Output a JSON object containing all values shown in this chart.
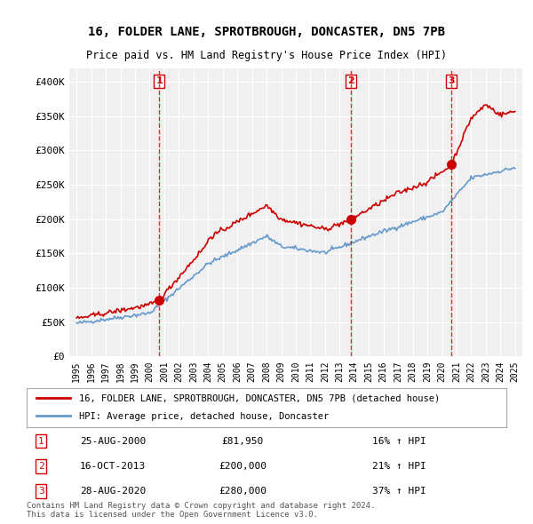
{
  "title": "16, FOLDER LANE, SPROTBROUGH, DONCASTER, DN5 7PB",
  "subtitle": "Price paid vs. HM Land Registry's House Price Index (HPI)",
  "xlabel": "",
  "ylabel": "",
  "ylim": [
    0,
    420000
  ],
  "yticks": [
    0,
    50000,
    100000,
    150000,
    200000,
    250000,
    300000,
    350000,
    400000
  ],
  "ytick_labels": [
    "£0",
    "£50K",
    "£100K",
    "£150K",
    "£200K",
    "£250K",
    "£300K",
    "£350K",
    "£400K"
  ],
  "background_color": "#ffffff",
  "plot_bg_color": "#f0f0f0",
  "grid_color": "#ffffff",
  "sale_dates": [
    2000.65,
    2013.79,
    2020.65
  ],
  "sale_prices": [
    81950,
    200000,
    280000
  ],
  "sale_labels": [
    "1",
    "2",
    "3"
  ],
  "sale_label_date": "25-AUG-2000",
  "legend_property": "16, FOLDER LANE, SPROTBROUGH, DONCASTER, DN5 7PB (detached house)",
  "legend_hpi": "HPI: Average price, detached house, Doncaster",
  "table_data": [
    [
      "1",
      "25-AUG-2000",
      "£81,950",
      "16% ↑ HPI"
    ],
    [
      "2",
      "16-OCT-2013",
      "£200,000",
      "21% ↑ HPI"
    ],
    [
      "3",
      "28-AUG-2020",
      "£280,000",
      "37% ↑ HPI"
    ]
  ],
  "footnote": "Contains HM Land Registry data © Crown copyright and database right 2024.\nThis data is licensed under the Open Government Licence v3.0.",
  "red_color": "#cc0000",
  "blue_color": "#6699cc",
  "dashed_color": "#cc0000"
}
